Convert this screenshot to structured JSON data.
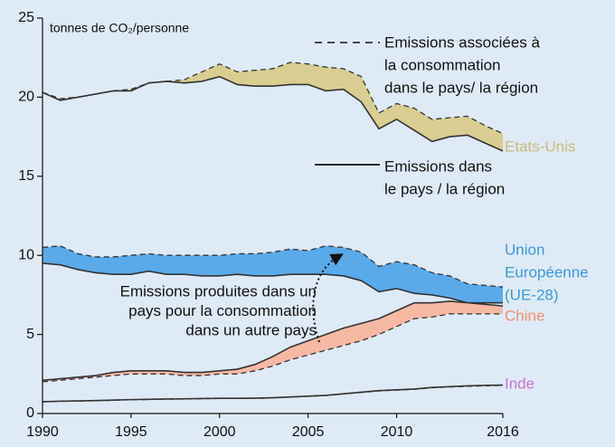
{
  "chart_data": {
    "type": "band",
    "y_label": "tonnes de CO₂/personne",
    "x": [
      1990,
      1991,
      1992,
      1993,
      1994,
      1995,
      1996,
      1997,
      1998,
      1999,
      2000,
      2001,
      2002,
      2003,
      2004,
      2005,
      2006,
      2007,
      2008,
      2009,
      2010,
      2011,
      2012,
      2013,
      2014,
      2015,
      2016
    ],
    "xlim": [
      1990,
      2016
    ],
    "xticks": [
      1990,
      1995,
      2000,
      2005,
      2010,
      2016
    ],
    "ylim": [
      0,
      25
    ],
    "yticks": [
      0,
      5,
      10,
      15,
      20,
      25
    ],
    "legend_consumption": [
      "Emissions associées à",
      "la consommation",
      "dans le pays/ la région"
    ],
    "legend_territorial": [
      "Emissions dans",
      "le pays / la région"
    ],
    "annotation": [
      "Emissions produites dans un",
      "pays pour la consommation",
      "dans un autre pays"
    ],
    "regions": [
      {
        "name": [
          "Etats-Unis"
        ],
        "color": "#d9cd91",
        "label_color": "#c8bb7c",
        "territorial": [
          20.3,
          19.8,
          20.0,
          20.2,
          20.4,
          20.4,
          20.9,
          21.0,
          20.9,
          21.0,
          21.3,
          20.8,
          20.7,
          20.7,
          20.8,
          20.8,
          20.4,
          20.5,
          19.7,
          18.0,
          18.6,
          17.9,
          17.2,
          17.5,
          17.6,
          17.1,
          16.6
        ],
        "consumption": [
          20.3,
          19.9,
          20.0,
          20.2,
          20.4,
          20.5,
          20.9,
          21.0,
          21.1,
          21.6,
          22.1,
          21.6,
          21.7,
          21.8,
          22.2,
          22.1,
          21.9,
          21.8,
          21.3,
          19.0,
          19.6,
          19.3,
          18.6,
          18.7,
          18.8,
          18.2,
          17.7
        ]
      },
      {
        "name": [
          "Union",
          "Européenne",
          "(UE-28)"
        ],
        "color": "#5aaaea",
        "label_color": "#3b97e0",
        "territorial": [
          9.5,
          9.4,
          9.1,
          8.9,
          8.8,
          8.8,
          9.0,
          8.8,
          8.8,
          8.7,
          8.7,
          8.8,
          8.7,
          8.7,
          8.8,
          8.8,
          8.8,
          8.7,
          8.4,
          7.7,
          7.9,
          7.6,
          7.5,
          7.3,
          7.0,
          7.0,
          7.0
        ],
        "consumption": [
          10.5,
          10.6,
          10.1,
          9.9,
          9.9,
          10.0,
          10.1,
          10.0,
          10.0,
          10.0,
          10.0,
          10.1,
          10.1,
          10.2,
          10.4,
          10.3,
          10.6,
          10.5,
          10.2,
          9.3,
          9.6,
          9.4,
          8.9,
          8.7,
          8.2,
          8.1,
          8.0
        ]
      },
      {
        "name": [
          "Chine"
        ],
        "color": "#f6b9a4",
        "label_color": "#f08f6c",
        "territorial": [
          2.1,
          2.2,
          2.3,
          2.4,
          2.6,
          2.7,
          2.7,
          2.7,
          2.6,
          2.6,
          2.7,
          2.8,
          3.1,
          3.6,
          4.2,
          4.6,
          5.0,
          5.4,
          5.7,
          6.0,
          6.5,
          7.0,
          7.0,
          7.1,
          7.0,
          6.9,
          6.8
        ],
        "consumption": [
          2.0,
          2.1,
          2.2,
          2.3,
          2.4,
          2.5,
          2.5,
          2.5,
          2.4,
          2.4,
          2.5,
          2.5,
          2.7,
          3.0,
          3.4,
          3.7,
          4.0,
          4.3,
          4.6,
          5.0,
          5.5,
          6.0,
          6.1,
          6.3,
          6.3,
          6.3,
          6.3
        ]
      },
      {
        "name": [
          "Inde"
        ],
        "color": "#e6c8e6",
        "label_color": "#c876c8",
        "territorial": [
          0.75,
          0.78,
          0.8,
          0.82,
          0.85,
          0.88,
          0.9,
          0.92,
          0.93,
          0.95,
          0.96,
          0.96,
          0.97,
          1.0,
          1.05,
          1.1,
          1.15,
          1.25,
          1.35,
          1.45,
          1.5,
          1.55,
          1.65,
          1.7,
          1.75,
          1.78,
          1.8
        ],
        "consumption": [
          0.74,
          0.77,
          0.79,
          0.81,
          0.84,
          0.87,
          0.89,
          0.91,
          0.92,
          0.94,
          0.95,
          0.95,
          0.96,
          0.99,
          1.04,
          1.09,
          1.14,
          1.24,
          1.33,
          1.43,
          1.48,
          1.53,
          1.63,
          1.68,
          1.72,
          1.75,
          1.78
        ]
      }
    ]
  }
}
